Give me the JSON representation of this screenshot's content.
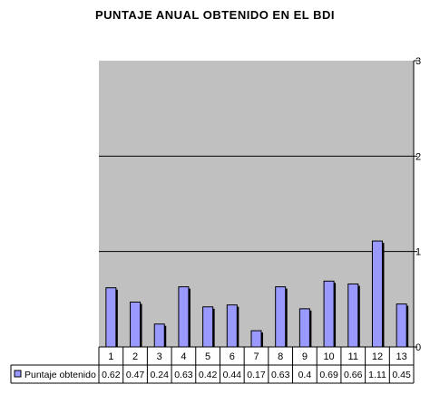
{
  "chart_data": {
    "type": "bar",
    "title": "PUNTAJE ANUAL OBTENIDO EN EL BDI",
    "categories": [
      "1",
      "2",
      "3",
      "4",
      "5",
      "6",
      "7",
      "8",
      "9",
      "10",
      "11",
      "12",
      "13"
    ],
    "series": [
      {
        "name": "Puntaje obtenido",
        "values": [
          0.62,
          0.47,
          0.24,
          0.63,
          0.42,
          0.44,
          0.17,
          0.63,
          0.4,
          0.69,
          0.66,
          1.11,
          0.45
        ],
        "labels": [
          "0.62",
          "0.47",
          "0.24",
          "0.63",
          "0.42",
          "0.44",
          "0.17",
          "0.63",
          "0.4",
          "0.69",
          "0.66",
          "1.11",
          "0.45"
        ]
      }
    ],
    "ylim": [
      0,
      3
    ],
    "yticks": [
      "0",
      "1",
      "2",
      "3"
    ],
    "legend": "data-table",
    "grid": true,
    "colors": {
      "bar": "#9999ff",
      "plot_bg": "#c0c0c0",
      "outline": "#000000"
    }
  }
}
